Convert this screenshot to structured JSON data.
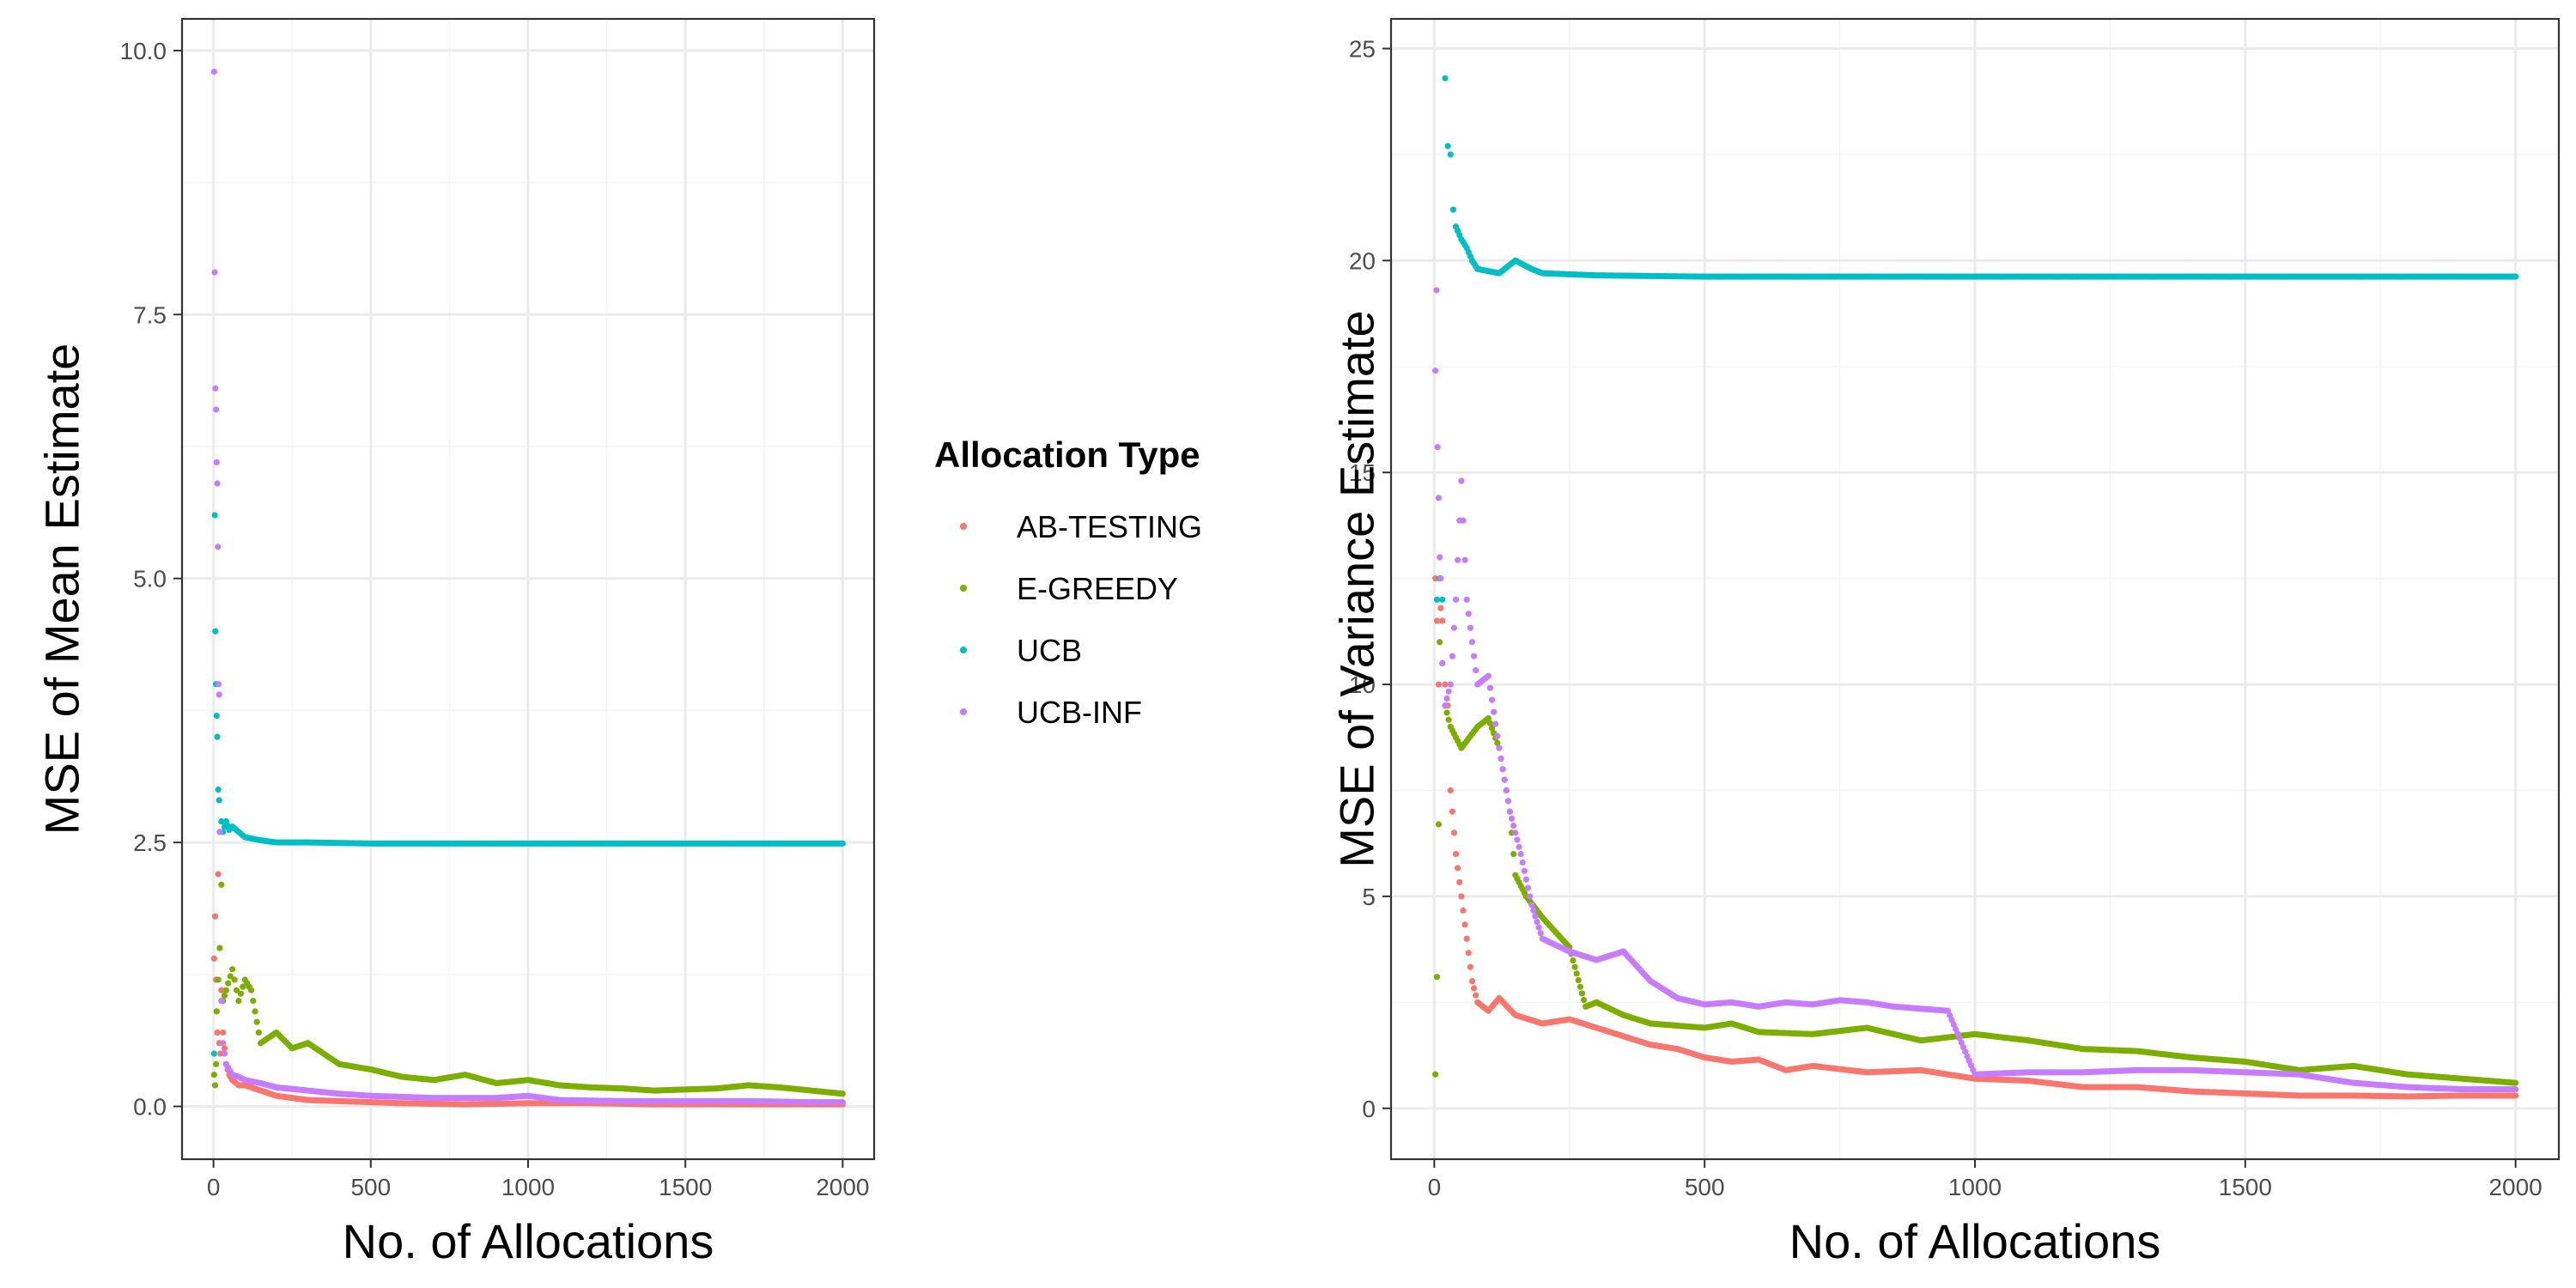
{
  "chart_data": [
    {
      "type": "scatter",
      "xlabel": "No. of Allocations",
      "ylabel": "MSE of Mean Estimate",
      "xlim": [
        -100,
        2100
      ],
      "ylim": [
        -0.5,
        10.3
      ],
      "x_ticks": [
        0,
        500,
        1000,
        1500,
        2000
      ],
      "y_ticks": [
        0.0,
        2.5,
        5.0,
        7.5,
        10.0
      ],
      "x_tick_labels": [
        "0",
        "500",
        "1000",
        "1500",
        "2000"
      ],
      "y_tick_labels": [
        "0.0",
        "2.5",
        "5.0",
        "7.5",
        "10.0"
      ],
      "grid": true,
      "series": [
        {
          "name": "AB-TESTING",
          "points": [
            [
              2,
              1.4
            ],
            [
              5,
              1.8
            ],
            [
              8,
              1.2
            ],
            [
              10,
              0.9
            ],
            [
              12,
              0.7
            ],
            [
              15,
              2.2
            ],
            [
              18,
              0.6
            ],
            [
              22,
              0.5
            ],
            [
              25,
              1.1
            ],
            [
              30,
              0.7
            ],
            [
              40,
              0.4
            ],
            [
              50,
              0.3
            ],
            [
              60,
              0.25
            ],
            [
              80,
              0.2
            ],
            [
              100,
              0.2
            ],
            [
              150,
              0.15
            ],
            [
              200,
              0.1
            ],
            [
              300,
              0.06
            ],
            [
              400,
              0.05
            ],
            [
              600,
              0.03
            ],
            [
              800,
              0.02
            ],
            [
              1000,
              0.03
            ],
            [
              1200,
              0.03
            ],
            [
              1400,
              0.02
            ],
            [
              1600,
              0.02
            ],
            [
              1800,
              0.02
            ],
            [
              2000,
              0.02
            ]
          ]
        },
        {
          "name": "E-GREEDY",
          "points": [
            [
              2,
              0.3
            ],
            [
              5,
              0.2
            ],
            [
              8,
              0.4
            ],
            [
              10,
              0.9
            ],
            [
              15,
              1.2
            ],
            [
              20,
              1.5
            ],
            [
              25,
              2.1
            ],
            [
              30,
              1.0
            ],
            [
              40,
              1.1
            ],
            [
              60,
              1.3
            ],
            [
              80,
              1.0
            ],
            [
              100,
              1.2
            ],
            [
              120,
              1.1
            ],
            [
              150,
              0.6
            ],
            [
              200,
              0.7
            ],
            [
              250,
              0.55
            ],
            [
              300,
              0.6
            ],
            [
              350,
              0.5
            ],
            [
              400,
              0.4
            ],
            [
              500,
              0.35
            ],
            [
              600,
              0.28
            ],
            [
              700,
              0.25
            ],
            [
              800,
              0.3
            ],
            [
              900,
              0.22
            ],
            [
              1000,
              0.25
            ],
            [
              1100,
              0.2
            ],
            [
              1200,
              0.18
            ],
            [
              1300,
              0.17
            ],
            [
              1400,
              0.15
            ],
            [
              1500,
              0.16
            ],
            [
              1600,
              0.17
            ],
            [
              1700,
              0.2
            ],
            [
              1800,
              0.18
            ],
            [
              1900,
              0.15
            ],
            [
              2000,
              0.12
            ]
          ]
        },
        {
          "name": "UCB",
          "points": [
            [
              2,
              0.5
            ],
            [
              4,
              5.6
            ],
            [
              6,
              4.5
            ],
            [
              8,
              4.0
            ],
            [
              10,
              3.7
            ],
            [
              12,
              3.5
            ],
            [
              15,
              3.0
            ],
            [
              18,
              2.9
            ],
            [
              20,
              2.6
            ],
            [
              25,
              2.7
            ],
            [
              30,
              2.6
            ],
            [
              40,
              2.7
            ],
            [
              50,
              2.62
            ],
            [
              60,
              2.65
            ],
            [
              80,
              2.6
            ],
            [
              100,
              2.55
            ],
            [
              150,
              2.52
            ],
            [
              200,
              2.5
            ],
            [
              300,
              2.5
            ],
            [
              500,
              2.49
            ],
            [
              1000,
              2.49
            ],
            [
              1500,
              2.49
            ],
            [
              2000,
              2.49
            ]
          ]
        },
        {
          "name": "UCB-INF",
          "points": [
            [
              2,
              9.8
            ],
            [
              4,
              7.9
            ],
            [
              6,
              6.8
            ],
            [
              8,
              6.6
            ],
            [
              10,
              6.1
            ],
            [
              12,
              5.9
            ],
            [
              14,
              5.3
            ],
            [
              16,
              4.0
            ],
            [
              18,
              3.9
            ],
            [
              20,
              2.6
            ],
            [
              25,
              1.0
            ],
            [
              30,
              0.6
            ],
            [
              40,
              0.4
            ],
            [
              60,
              0.3
            ],
            [
              80,
              0.28
            ],
            [
              100,
              0.25
            ],
            [
              150,
              0.22
            ],
            [
              200,
              0.18
            ],
            [
              300,
              0.15
            ],
            [
              400,
              0.12
            ],
            [
              500,
              0.1
            ],
            [
              700,
              0.08
            ],
            [
              900,
              0.08
            ],
            [
              1000,
              0.1
            ],
            [
              1100,
              0.06
            ],
            [
              1300,
              0.05
            ],
            [
              1500,
              0.05
            ],
            [
              1700,
              0.05
            ],
            [
              1900,
              0.04
            ],
            [
              2000,
              0.04
            ]
          ]
        }
      ]
    },
    {
      "type": "scatter",
      "xlabel": "No. of Allocations",
      "ylabel": "MSE of Variance Estimate",
      "xlim": [
        -80,
        2080
      ],
      "ylim": [
        -1.2,
        25.7
      ],
      "x_ticks": [
        0,
        500,
        1000,
        1500,
        2000
      ],
      "y_ticks": [
        0,
        5,
        10,
        15,
        20,
        25
      ],
      "x_tick_labels": [
        "0",
        "500",
        "1000",
        "1500",
        "2000"
      ],
      "y_tick_labels": [
        "0",
        "5",
        "10",
        "15",
        "20",
        "25"
      ],
      "grid": true,
      "series": [
        {
          "name": "AB-TESTING",
          "points": [
            [
              2,
              12.5
            ],
            [
              5,
              11.5
            ],
            [
              8,
              10.0
            ],
            [
              12,
              11.8
            ],
            [
              15,
              11.5
            ],
            [
              20,
              10.0
            ],
            [
              25,
              9.5
            ],
            [
              30,
              7.5
            ],
            [
              40,
              6.0
            ],
            [
              50,
              5.0
            ],
            [
              60,
              4.0
            ],
            [
              70,
              3.0
            ],
            [
              80,
              2.5
            ],
            [
              100,
              2.3
            ],
            [
              120,
              2.6
            ],
            [
              150,
              2.2
            ],
            [
              200,
              2.0
            ],
            [
              250,
              2.1
            ],
            [
              300,
              1.9
            ],
            [
              350,
              1.7
            ],
            [
              400,
              1.5
            ],
            [
              450,
              1.4
            ],
            [
              500,
              1.2
            ],
            [
              550,
              1.1
            ],
            [
              600,
              1.15
            ],
            [
              650,
              0.9
            ],
            [
              700,
              1.0
            ],
            [
              800,
              0.85
            ],
            [
              900,
              0.9
            ],
            [
              1000,
              0.7
            ],
            [
              1100,
              0.65
            ],
            [
              1200,
              0.5
            ],
            [
              1300,
              0.5
            ],
            [
              1400,
              0.4
            ],
            [
              1500,
              0.35
            ],
            [
              1600,
              0.3
            ],
            [
              1700,
              0.3
            ],
            [
              1800,
              0.28
            ],
            [
              1900,
              0.3
            ],
            [
              2000,
              0.3
            ]
          ]
        },
        {
          "name": "E-GREEDY",
          "points": [
            [
              2,
              0.8
            ],
            [
              5,
              3.1
            ],
            [
              8,
              6.7
            ],
            [
              10,
              11.0
            ],
            [
              15,
              10.5
            ],
            [
              20,
              9.5
            ],
            [
              30,
              9.0
            ],
            [
              50,
              8.5
            ],
            [
              80,
              9.0
            ],
            [
              100,
              9.2
            ],
            [
              120,
              8.5
            ],
            [
              140,
              7.0
            ],
            [
              150,
              5.5
            ],
            [
              170,
              5.0
            ],
            [
              200,
              4.5
            ],
            [
              250,
              3.8
            ],
            [
              280,
              2.4
            ],
            [
              300,
              2.5
            ],
            [
              350,
              2.2
            ],
            [
              400,
              2.0
            ],
            [
              450,
              1.95
            ],
            [
              500,
              1.9
            ],
            [
              550,
              2.0
            ],
            [
              600,
              1.8
            ],
            [
              700,
              1.75
            ],
            [
              800,
              1.9
            ],
            [
              900,
              1.6
            ],
            [
              1000,
              1.75
            ],
            [
              1100,
              1.6
            ],
            [
              1200,
              1.4
            ],
            [
              1300,
              1.35
            ],
            [
              1400,
              1.2
            ],
            [
              1500,
              1.1
            ],
            [
              1600,
              0.9
            ],
            [
              1700,
              1.0
            ],
            [
              1800,
              0.8
            ],
            [
              1900,
              0.7
            ],
            [
              2000,
              0.6
            ]
          ]
        },
        {
          "name": "UCB",
          "points": [
            [
              5,
              12.0
            ],
            [
              10,
              12.5
            ],
            [
              15,
              12.0
            ],
            [
              20,
              24.3
            ],
            [
              25,
              22.7
            ],
            [
              30,
              22.5
            ],
            [
              35,
              21.2
            ],
            [
              40,
              20.8
            ],
            [
              50,
              20.5
            ],
            [
              60,
              20.3
            ],
            [
              70,
              20.0
            ],
            [
              80,
              19.8
            ],
            [
              100,
              19.75
            ],
            [
              120,
              19.7
            ],
            [
              150,
              20.0
            ],
            [
              180,
              19.8
            ],
            [
              200,
              19.7
            ],
            [
              300,
              19.65
            ],
            [
              500,
              19.62
            ],
            [
              1000,
              19.62
            ],
            [
              1500,
              19.62
            ],
            [
              2000,
              19.62
            ]
          ]
        },
        {
          "name": "UCB-INF",
          "points": [
            [
              2,
              17.4
            ],
            [
              4,
              19.3
            ],
            [
              6,
              15.6
            ],
            [
              8,
              14.4
            ],
            [
              10,
              13.0
            ],
            [
              12,
              12.5
            ],
            [
              15,
              10.5
            ],
            [
              20,
              9.5
            ],
            [
              30,
              10.0
            ],
            [
              40,
              12.0
            ],
            [
              50,
              14.8
            ],
            [
              60,
              12.0
            ],
            [
              70,
              11.0
            ],
            [
              80,
              10.0
            ],
            [
              100,
              10.2
            ],
            [
              120,
              8.5
            ],
            [
              140,
              7.0
            ],
            [
              160,
              6.0
            ],
            [
              180,
              4.8
            ],
            [
              200,
              4.0
            ],
            [
              250,
              3.7
            ],
            [
              300,
              3.5
            ],
            [
              350,
              3.7
            ],
            [
              400,
              3.0
            ],
            [
              450,
              2.6
            ],
            [
              500,
              2.45
            ],
            [
              550,
              2.5
            ],
            [
              600,
              2.4
            ],
            [
              650,
              2.5
            ],
            [
              700,
              2.45
            ],
            [
              750,
              2.55
            ],
            [
              800,
              2.5
            ],
            [
              850,
              2.4
            ],
            [
              900,
              2.35
            ],
            [
              950,
              2.3
            ],
            [
              1000,
              0.8
            ],
            [
              1100,
              0.85
            ],
            [
              1200,
              0.85
            ],
            [
              1300,
              0.9
            ],
            [
              1400,
              0.9
            ],
            [
              1500,
              0.85
            ],
            [
              1600,
              0.8
            ],
            [
              1700,
              0.6
            ],
            [
              1800,
              0.5
            ],
            [
              1900,
              0.45
            ],
            [
              2000,
              0.45
            ]
          ]
        }
      ]
    }
  ],
  "legend": {
    "title": "Allocation Type",
    "entries": [
      {
        "label": "AB-TESTING",
        "color": "#F8766D"
      },
      {
        "label": "E-GREEDY",
        "color": "#7CAE00"
      },
      {
        "label": "UCB",
        "color": "#00BFC4"
      },
      {
        "label": "UCB-INF",
        "color": "#C77CFF"
      }
    ]
  },
  "colors": {
    "grid_major": "#ebebeb",
    "grid_minor": "#f5f5f5",
    "panel_border": "#333333",
    "tick_text": "#4d4d4d"
  }
}
